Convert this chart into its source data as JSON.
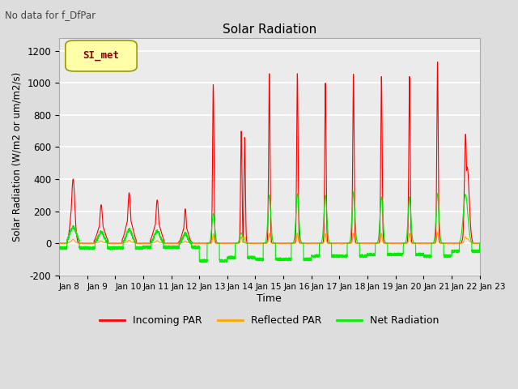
{
  "title": "Solar Radiation",
  "subtitle": "No data for f_DfPar",
  "ylabel": "Solar Radiation (W/m2 or um/m2/s)",
  "xlabel": "Time",
  "ylim": [
    -200,
    1280
  ],
  "yticks": [
    -200,
    0,
    200,
    400,
    600,
    800,
    1000,
    1200
  ],
  "n_days": 15,
  "xtick_labels": [
    "Jan 8",
    "Jan 9",
    "Jan 10",
    "Jan 11",
    "Jan 12",
    "Jan 13",
    "Jan 14",
    "Jan 15",
    "Jan 16",
    "Jan 17",
    "Jan 18",
    "Jan 19",
    "Jan 20",
    "Jan 21",
    "Jan 22",
    "Jan 23"
  ],
  "legend_label": "SI_met",
  "legend_label_color": "#8B0000",
  "legend_box_facecolor": "#FFFFAA",
  "legend_box_edgecolor": "#999900",
  "fig_facecolor": "#DDDDDD",
  "plot_bg_color": "#EBEBEB",
  "incoming_color": "#FF0000",
  "reflected_color": "#FFA500",
  "net_color": "#00EE00",
  "line_width": 0.8,
  "incoming_legend": "Incoming PAR",
  "reflected_legend": "Reflected PAR",
  "net_legend": "Net Radiation"
}
